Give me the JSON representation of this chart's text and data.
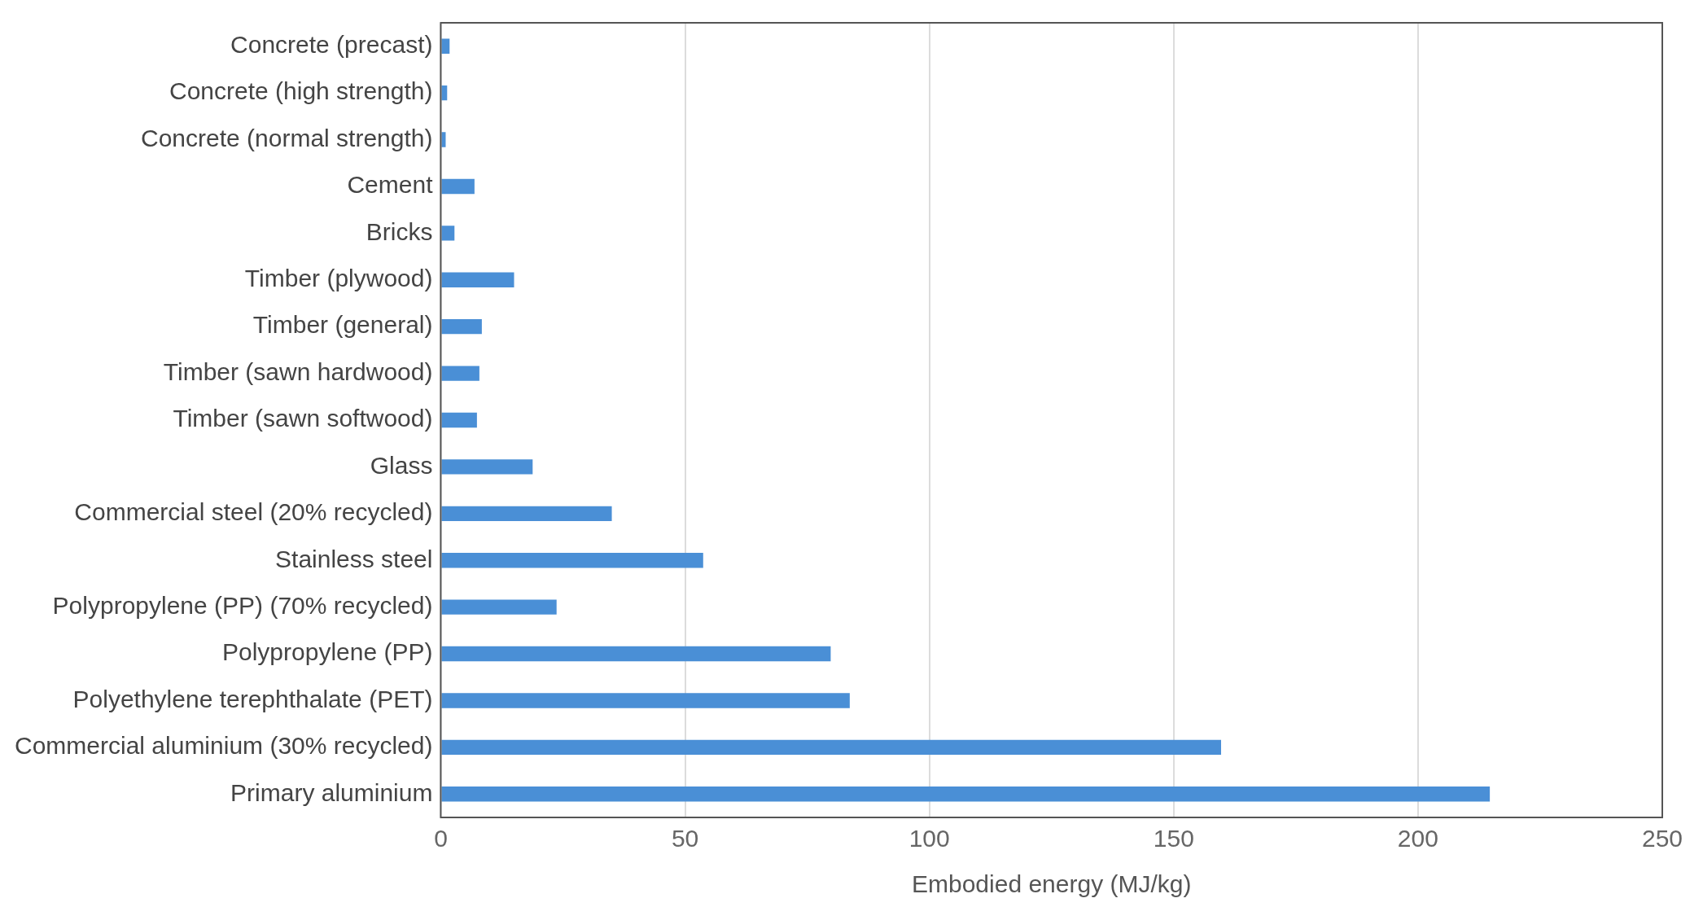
{
  "chart_data": {
    "type": "bar",
    "orientation": "horizontal",
    "xlabel": "Embodied energy (MJ/kg)",
    "categories": [
      "Concrete (precast)",
      "Concrete (high strength)",
      "Concrete (normal strength)",
      "Cement",
      "Bricks",
      "Timber (plywood)",
      "Timber (general)",
      "Timber (sawn hardwood)",
      "Timber (sawn softwood)",
      "Glass",
      "Commercial steel (20% recycled)",
      "Stainless steel",
      "Polypropylene (PP) (70% recycled)",
      "Polypropylene (PP)",
      "Polyethylene terephthalate (PET)",
      "Commercial aluminium (30% recycled)",
      "Primary aluminium"
    ],
    "values": [
      1.8,
      1.3,
      1.0,
      6.9,
      2.8,
      15,
      8.4,
      7.9,
      7.4,
      18.8,
      35,
      53.7,
      23.7,
      79.8,
      83.7,
      159.7,
      214.7
    ],
    "color": "#4a8fd6",
    "xlim": [
      0,
      250
    ],
    "xticks": [
      0,
      50,
      100,
      150,
      200,
      250
    ],
    "grid": "x"
  }
}
